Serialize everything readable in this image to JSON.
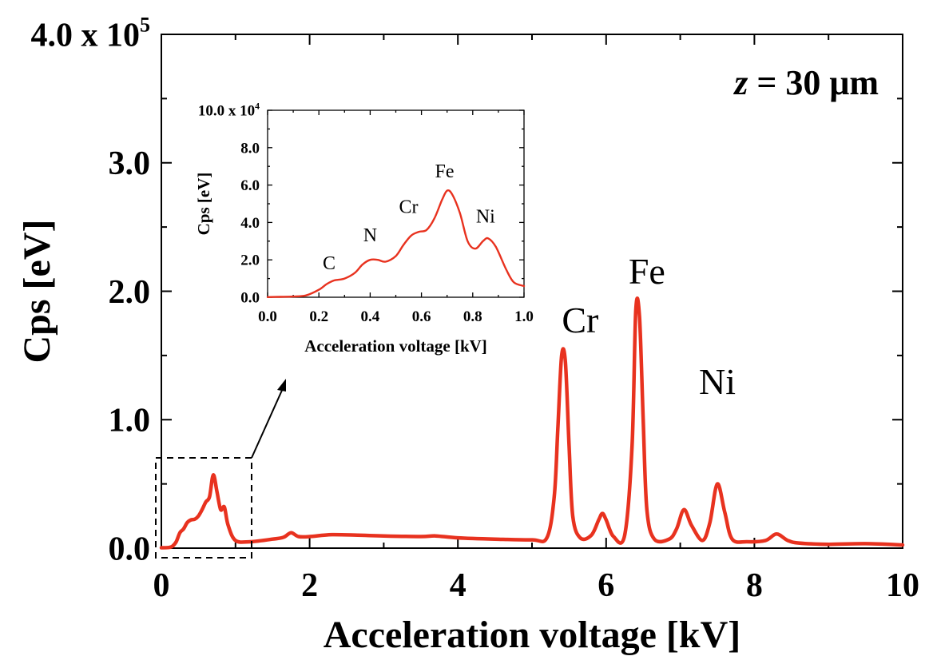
{
  "colors": {
    "series": "#e8321f",
    "axis": "#000000",
    "background": "#ffffff"
  },
  "chart_data": [
    {
      "id": "main",
      "type": "line",
      "title": "",
      "annotation": {
        "var": "z",
        "rest": " = 30 μm"
      },
      "xlabel": "Acceleration voltage [kV]",
      "ylabel": "Cps [eV]",
      "xlim": [
        0,
        10
      ],
      "ylim": [
        0,
        400000
      ],
      "x_tick_labels": [
        {
          "value": 0,
          "label": "0"
        },
        {
          "value": 2,
          "label": "2"
        },
        {
          "value": 4,
          "label": "4"
        },
        {
          "value": 6,
          "label": "6"
        },
        {
          "value": 8,
          "label": "8"
        },
        {
          "value": 10,
          "label": "10"
        }
      ],
      "y_tick_labels": [
        {
          "value": 0,
          "label": "0.0"
        },
        {
          "value": 100000,
          "label": "1.0"
        },
        {
          "value": 200000,
          "label": "2.0"
        },
        {
          "value": 300000,
          "label": "3.0"
        },
        {
          "value": 400000,
          "label": "4.0 x 10",
          "sup": "5"
        }
      ],
      "peak_labels": [
        {
          "text": "Cr",
          "x": 5.65,
          "y": 168000
        },
        {
          "text": "Fe",
          "x": 6.55,
          "y": 206000
        },
        {
          "text": "Ni",
          "x": 7.5,
          "y": 120000
        }
      ],
      "series": [
        {
          "points": [
            [
              0.0,
              300
            ],
            [
              0.1,
              500
            ],
            [
              0.15,
              1500
            ],
            [
              0.2,
              5000
            ],
            [
              0.25,
              12000
            ],
            [
              0.3,
              15000
            ],
            [
              0.35,
              20000
            ],
            [
              0.4,
              22000
            ],
            [
              0.45,
              22500
            ],
            [
              0.5,
              25000
            ],
            [
              0.55,
              30000
            ],
            [
              0.6,
              36000
            ],
            [
              0.65,
              40000
            ],
            [
              0.7,
              57000
            ],
            [
              0.75,
              44000
            ],
            [
              0.8,
              30000
            ],
            [
              0.85,
              32000
            ],
            [
              0.9,
              18000
            ],
            [
              1.0,
              6000
            ],
            [
              1.2,
              5000
            ],
            [
              1.5,
              7000
            ],
            [
              1.65,
              8500
            ],
            [
              1.75,
              12000
            ],
            [
              1.85,
              9000
            ],
            [
              2.0,
              9000
            ],
            [
              2.3,
              10500
            ],
            [
              2.7,
              10000
            ],
            [
              3.0,
              9500
            ],
            [
              3.5,
              9000
            ],
            [
              3.7,
              9500
            ],
            [
              4.0,
              8000
            ],
            [
              4.5,
              7000
            ],
            [
              5.0,
              6500
            ],
            [
              5.2,
              8000
            ],
            [
              5.3,
              40000
            ],
            [
              5.35,
              95000
            ],
            [
              5.4,
              150000
            ],
            [
              5.45,
              145000
            ],
            [
              5.5,
              80000
            ],
            [
              5.55,
              25000
            ],
            [
              5.65,
              8000
            ],
            [
              5.8,
              10000
            ],
            [
              5.9,
              22000
            ],
            [
              5.95,
              27000
            ],
            [
              6.0,
              22000
            ],
            [
              6.1,
              9000
            ],
            [
              6.25,
              10000
            ],
            [
              6.35,
              80000
            ],
            [
              6.4,
              185000
            ],
            [
              6.45,
              180000
            ],
            [
              6.5,
              100000
            ],
            [
              6.55,
              30000
            ],
            [
              6.65,
              7000
            ],
            [
              6.85,
              7000
            ],
            [
              6.95,
              15000
            ],
            [
              7.05,
              30000
            ],
            [
              7.15,
              18000
            ],
            [
              7.3,
              6000
            ],
            [
              7.4,
              20000
            ],
            [
              7.5,
              50000
            ],
            [
              7.6,
              28000
            ],
            [
              7.7,
              7000
            ],
            [
              7.9,
              5000
            ],
            [
              8.15,
              6000
            ],
            [
              8.3,
              11000
            ],
            [
              8.45,
              6000
            ],
            [
              8.6,
              4000
            ],
            [
              9.0,
              3000
            ],
            [
              9.5,
              3500
            ],
            [
              10.0,
              2500
            ]
          ]
        }
      ]
    },
    {
      "id": "inset",
      "type": "line",
      "title": "",
      "xlabel": "Acceleration voltage [kV]",
      "ylabel": "Cps [eV]",
      "xlim": [
        0,
        1
      ],
      "ylim": [
        0,
        100000
      ],
      "x_tick_labels": [
        {
          "value": 0.0,
          "label": "0.0"
        },
        {
          "value": 0.2,
          "label": "0.2"
        },
        {
          "value": 0.4,
          "label": "0.4"
        },
        {
          "value": 0.6,
          "label": "0.6"
        },
        {
          "value": 0.8,
          "label": "0.8"
        },
        {
          "value": 1.0,
          "label": "1.0"
        }
      ],
      "y_tick_labels": [
        {
          "value": 0,
          "label": "0.0"
        },
        {
          "value": 20000,
          "label": "2.0"
        },
        {
          "value": 40000,
          "label": "4.0"
        },
        {
          "value": 60000,
          "label": "6.0"
        },
        {
          "value": 80000,
          "label": "8.0"
        },
        {
          "value": 100000,
          "label": "10.0 x 10",
          "sup": "4"
        }
      ],
      "peak_labels": [
        {
          "text": "C",
          "x": 0.24,
          "y": 15000
        },
        {
          "text": "N",
          "x": 0.4,
          "y": 30000
        },
        {
          "text": "Cr",
          "x": 0.55,
          "y": 45000
        },
        {
          "text": "Fe",
          "x": 0.69,
          "y": 64000
        },
        {
          "text": "Ni",
          "x": 0.85,
          "y": 40000
        }
      ],
      "series": [
        {
          "points": [
            [
              0.0,
              100
            ],
            [
              0.05,
              200
            ],
            [
              0.1,
              400
            ],
            [
              0.15,
              1000
            ],
            [
              0.2,
              4000
            ],
            [
              0.23,
              7000
            ],
            [
              0.26,
              9000
            ],
            [
              0.3,
              10000
            ],
            [
              0.34,
              13000
            ],
            [
              0.37,
              17500
            ],
            [
              0.4,
              20000
            ],
            [
              0.43,
              20000
            ],
            [
              0.46,
              19000
            ],
            [
              0.5,
              22000
            ],
            [
              0.53,
              28000
            ],
            [
              0.56,
              33000
            ],
            [
              0.59,
              35000
            ],
            [
              0.62,
              36000
            ],
            [
              0.65,
              42000
            ],
            [
              0.68,
              52000
            ],
            [
              0.7,
              57000
            ],
            [
              0.72,
              55000
            ],
            [
              0.75,
              45000
            ],
            [
              0.78,
              30000
            ],
            [
              0.81,
              26000
            ],
            [
              0.84,
              30000
            ],
            [
              0.86,
              31500
            ],
            [
              0.89,
              27000
            ],
            [
              0.93,
              15000
            ],
            [
              0.96,
              8000
            ],
            [
              1.0,
              6000
            ]
          ]
        }
      ]
    }
  ]
}
